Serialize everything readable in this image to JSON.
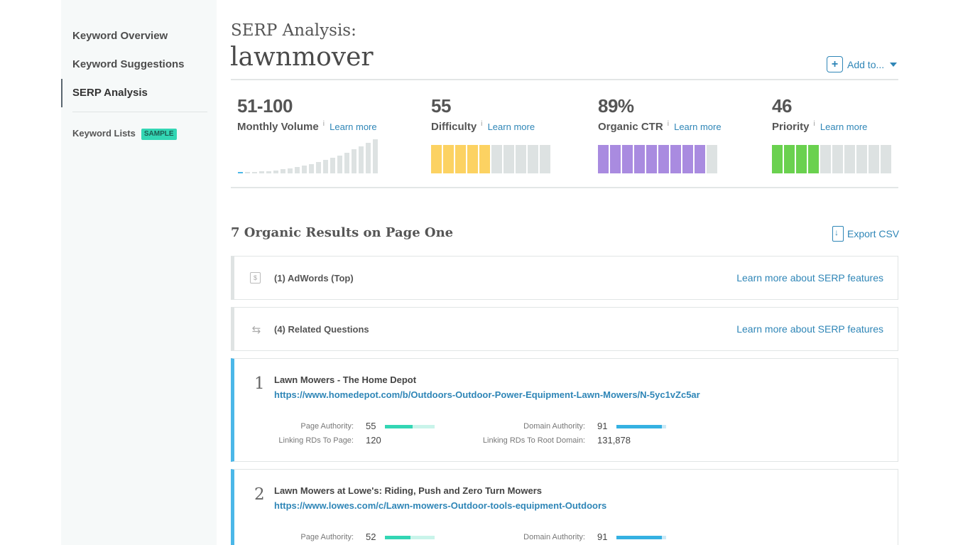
{
  "sidebar": {
    "items": [
      {
        "label": "Keyword Overview"
      },
      {
        "label": "Keyword Suggestions"
      },
      {
        "label": "SERP Analysis"
      }
    ],
    "lists_label": "Keyword Lists",
    "lists_badge": "SAMPLE"
  },
  "header": {
    "serp_label": "SERP Analysis:",
    "keyword": "lawnmover",
    "add_to_label": "Add to..."
  },
  "metrics": [
    {
      "value": "51-100",
      "label": "Monthly Volume",
      "info": "i",
      "learn": "Learn more"
    },
    {
      "value": "55",
      "label": "Difficulty",
      "info": "i",
      "learn": "Learn more",
      "color": "#fcd262",
      "filled": 5,
      "total": 10
    },
    {
      "value": "89%",
      "label": "Organic CTR",
      "info": "i",
      "learn": "Learn more",
      "color": "#a98be0",
      "filled": 9,
      "total": 10
    },
    {
      "value": "46",
      "label": "Priority",
      "info": "i",
      "learn": "Learn more",
      "color": "#6ad14f",
      "filled": 4,
      "total": 10
    }
  ],
  "volume_bar_color": "#4bb7e8",
  "results": {
    "title": "7 Organic Results on Page One",
    "export_label": "Export CSV",
    "features": [
      {
        "label": "(1) AdWords (Top)",
        "icon": "dollar-doc-icon",
        "link": "Learn more about SERP features"
      },
      {
        "label": "(4) Related Questions",
        "icon": "swap-arrows-icon",
        "link": "Learn more about SERP features"
      }
    ],
    "items": [
      {
        "rank": "1",
        "title": "Lawn Mowers - The Home Depot",
        "url": "https://www.homedepot.com/b/Outdoors-Outdoor-Power-Equipment-Lawn-Mowers/N-5yc1vZc5ar",
        "pa_label": "Page Authority:",
        "pa": "55",
        "pa_fill": 0.55,
        "da_label": "Domain Authority:",
        "da": "91",
        "da_fill": 0.91,
        "lrd_page_label": "Linking RDs To Page:",
        "lrd_page": "120",
        "lrd_root_label": "Linking RDs To Root Domain:",
        "lrd_root": "131,878"
      },
      {
        "rank": "2",
        "title": "Lawn Mowers at Lowe's: Riding, Push and Zero Turn Mowers",
        "url": "https://www.lowes.com/c/Lawn-mowers-Outdoor-tools-equipment-Outdoors",
        "pa_label": "Page Authority:",
        "pa": "52",
        "pa_fill": 0.52,
        "da_label": "Domain Authority:",
        "da": "91",
        "da_fill": 0.91
      }
    ]
  }
}
